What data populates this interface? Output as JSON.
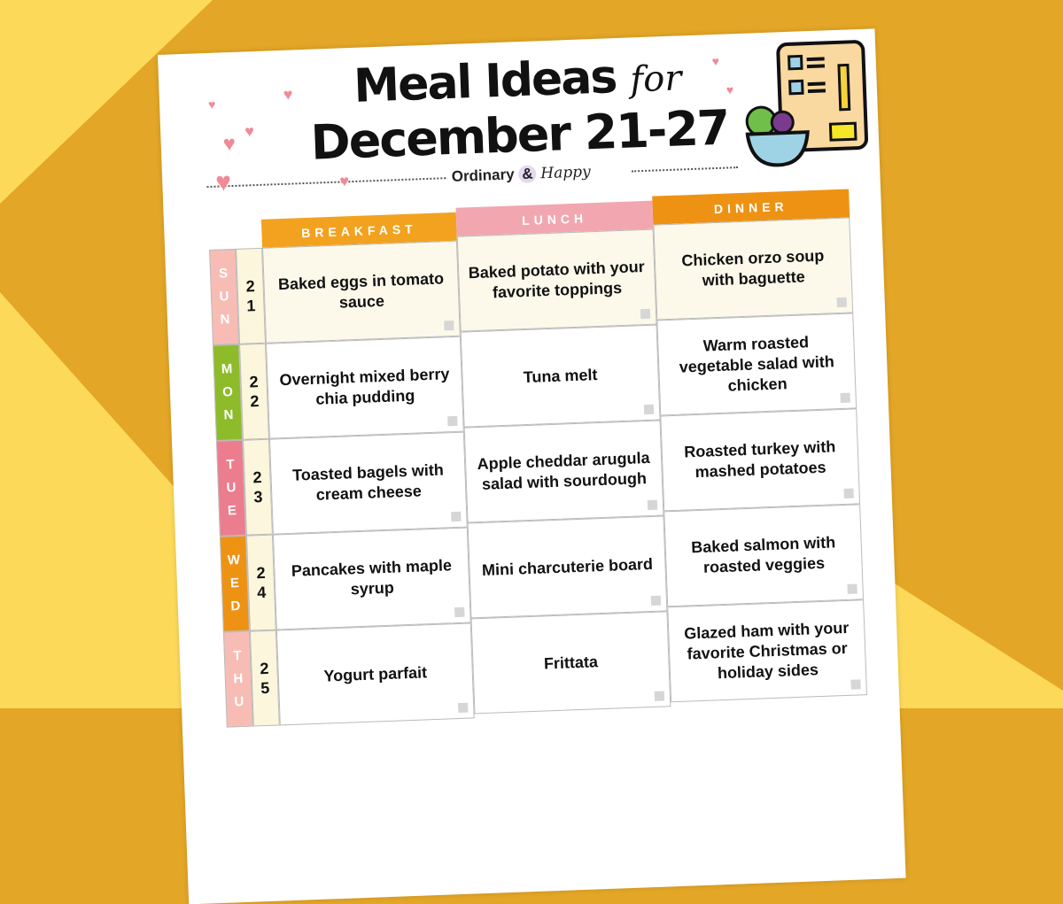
{
  "title": {
    "line1": "Meal Ideas",
    "line1_script": "for",
    "line2": "December 21-27"
  },
  "brand": {
    "name_part1": "Ordinary",
    "amp": "&",
    "name_part2": "Happy"
  },
  "columns": [
    {
      "label": "BREAKFAST",
      "color": "#F2A21F"
    },
    {
      "label": "LUNCH",
      "color": "#F2A7B0"
    },
    {
      "label": "DINNER",
      "color": "#EE9214"
    }
  ],
  "days": [
    {
      "day": [
        "S",
        "U",
        "N"
      ],
      "date": [
        "2",
        "1"
      ],
      "color": "#F7BDB5",
      "meals": [
        "Baked eggs in tomato sauce",
        "Baked potato with your favorite toppings",
        "Chicken orzo soup with baguette"
      ]
    },
    {
      "day": [
        "M",
        "O",
        "N"
      ],
      "date": [
        "2",
        "2"
      ],
      "color": "#8DBB2A",
      "meals": [
        "Overnight mixed berry chia pudding",
        "Tuna melt",
        "Warm roasted vegetable salad with chicken"
      ]
    },
    {
      "day": [
        "T",
        "U",
        "E"
      ],
      "date": [
        "2",
        "3"
      ],
      "color": "#EC7D8E",
      "meals": [
        "Toasted bagels with cream cheese",
        "Apple cheddar arugula salad with sourdough",
        "Roasted turkey with mashed potatoes"
      ]
    },
    {
      "day": [
        "W",
        "E",
        "D"
      ],
      "date": [
        "2",
        "4"
      ],
      "color": "#EE9214",
      "meals": [
        "Pancakes with maple syrup",
        "Mini charcuterie board",
        "Baked salmon with roasted veggies"
      ]
    },
    {
      "day": [
        "T",
        "H",
        "U"
      ],
      "date": [
        "2",
        "5"
      ],
      "color": "#F7BDB5",
      "meals": [
        "Yogurt parfait",
        "Frittata",
        "Glazed ham with your favorite Christmas or holiday sides"
      ]
    }
  ],
  "colors": {
    "background_left": "#FDD95A",
    "background_right": "#E3A626",
    "cell_cream": "#FCF9EA"
  },
  "icons": [
    "heart-icon",
    "checklist-icon",
    "salad-bowl-icon",
    "checkbox-icon"
  ]
}
